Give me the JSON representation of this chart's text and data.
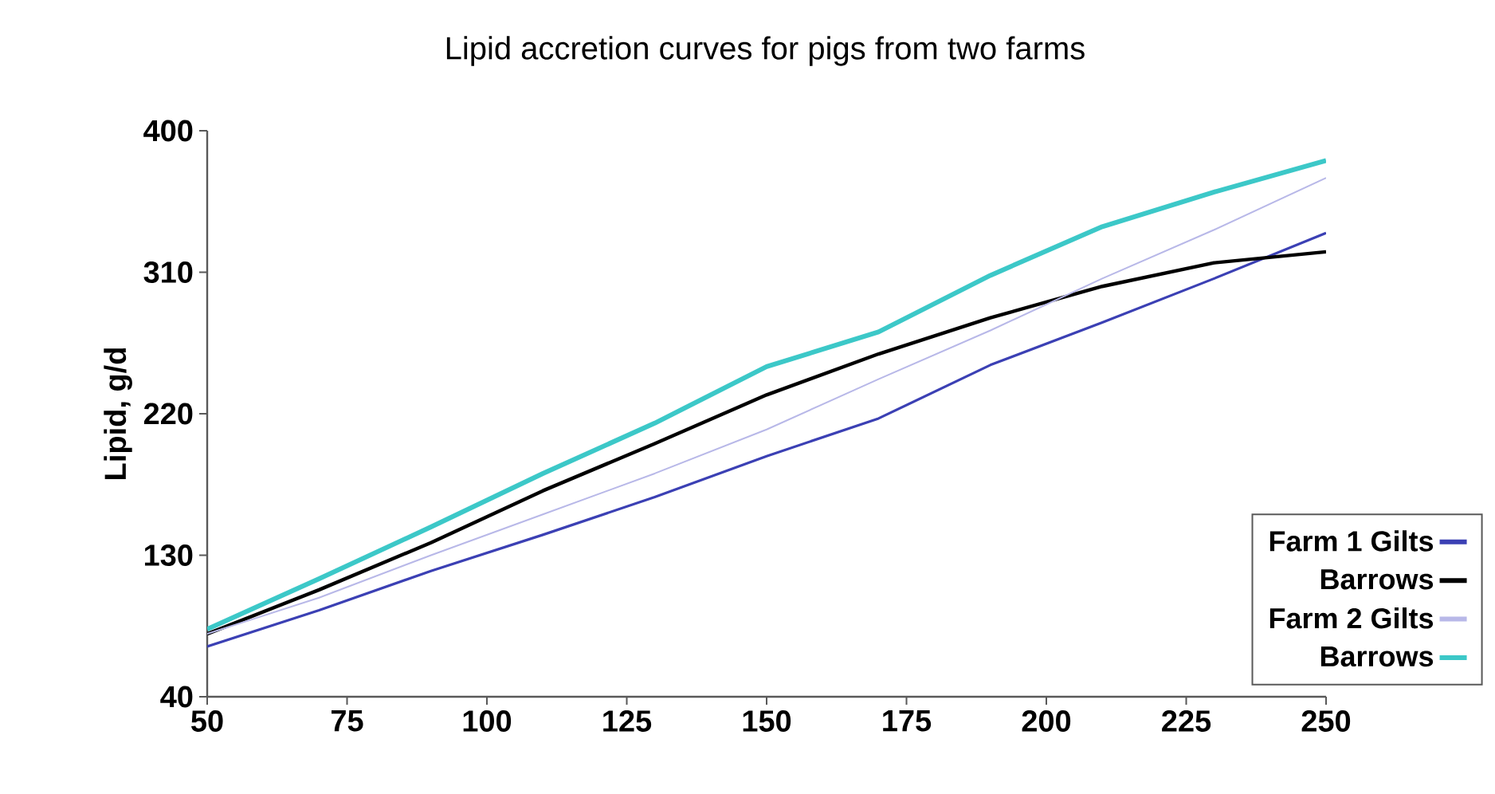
{
  "chart_data": {
    "type": "line",
    "title": "Lipid accretion curves for pigs from two farms",
    "ylabel": "Lipid, g/d",
    "x": [
      50,
      70,
      90,
      110,
      130,
      150,
      170,
      190,
      210,
      230,
      250
    ],
    "xlim": [
      50,
      250
    ],
    "xticks": [
      50,
      75,
      100,
      125,
      150,
      175,
      200,
      225,
      250
    ],
    "ylim": [
      40,
      400
    ],
    "yticks": [
      40,
      130,
      220,
      310,
      400
    ],
    "grid": false,
    "legend": "bottom right",
    "marker": "none",
    "line_style": "solid",
    "series": [
      {
        "name": "Farm 1  Gilts",
        "color": "#3b40b4",
        "values": [
          72,
          95,
          120,
          143,
          167,
          193,
          217,
          251,
          278,
          306,
          335
        ]
      },
      {
        "name": "Barrows",
        "color": "#000000",
        "values": [
          80,
          108,
          138,
          171,
          201,
          232,
          258,
          281,
          301,
          316,
          323
        ]
      },
      {
        "name": "Farm 2  Gilts",
        "color": "#b8b8e8",
        "values": [
          80,
          103,
          130,
          156,
          182,
          210,
          242,
          273,
          306,
          337,
          370
        ]
      },
      {
        "name": "Barrows",
        "color": "#3cc8c8",
        "values": [
          83,
          115,
          148,
          182,
          214,
          250,
          272,
          308,
          339,
          361,
          381
        ]
      }
    ]
  }
}
